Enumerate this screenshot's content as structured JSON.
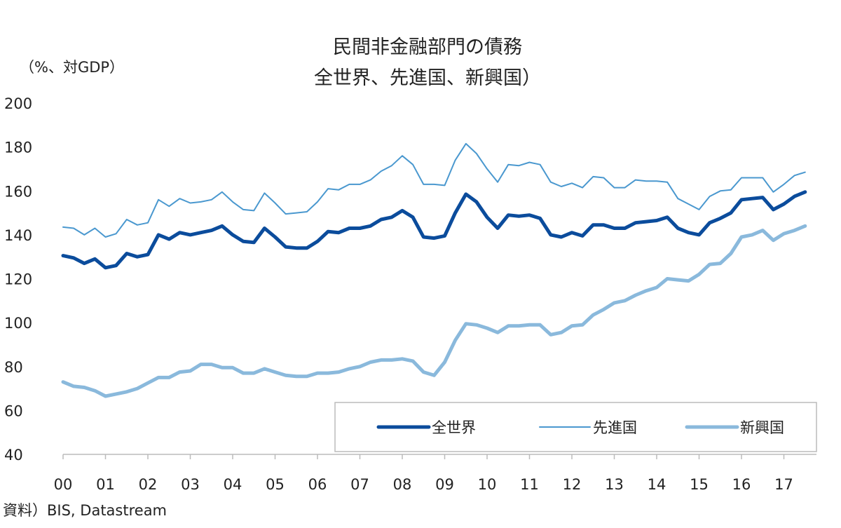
{
  "chart_data": {
    "type": "line",
    "title": "民間非金融部門の債務",
    "subtitle": "全世界、先進国、新興国）",
    "ylabel": "（%、対GDP）",
    "xlabel": "",
    "source": "資料）BIS, Datastream",
    "ylim": [
      40,
      200
    ],
    "yticks": [
      "200",
      "180",
      "160",
      "140",
      "120",
      "100",
      "80",
      "60",
      "40"
    ],
    "xticks": [
      "00",
      "01",
      "02",
      "03",
      "04",
      "05",
      "06",
      "07",
      "08",
      "09",
      "10",
      "11",
      "12",
      "13",
      "14",
      "15",
      "16",
      "17"
    ],
    "x_frequency": "quarterly, from 2000",
    "grid": false,
    "legend_position": "bottom-right",
    "series": [
      {
        "name": "全世界",
        "color": "#0b4c9c",
        "width": "thick",
        "values": [
          130.5,
          129.5,
          127,
          129,
          125,
          126,
          131.5,
          130,
          131,
          140,
          138,
          141,
          140,
          141,
          142,
          144,
          140,
          137,
          136.5,
          143,
          139,
          134.5,
          134,
          134,
          137,
          141.5,
          141,
          143,
          143,
          144,
          147,
          148,
          151,
          148,
          139,
          138.5,
          139.5,
          150,
          158.5,
          155,
          148,
          143,
          149,
          148.5,
          149,
          147.5,
          140,
          139,
          141,
          139.5,
          144.5,
          144.5,
          143,
          143,
          145.5,
          146,
          146.5,
          148,
          143,
          141,
          140,
          145.5,
          147.5,
          150,
          156,
          156.5,
          157,
          151.5,
          154,
          157.5,
          159.5
        ]
      },
      {
        "name": "先進国",
        "color": "#4a98cf",
        "width": "thin",
        "values": [
          143.5,
          143,
          140,
          143,
          139,
          140.5,
          147,
          144.5,
          145.5,
          156,
          153,
          156.5,
          154.5,
          155,
          156,
          159.5,
          155,
          151.5,
          151,
          159,
          154.5,
          149.5,
          150,
          150.5,
          155,
          161,
          160.5,
          163,
          163,
          165,
          169,
          171.5,
          176,
          172,
          163,
          163,
          162.5,
          174,
          181.5,
          177,
          170,
          164,
          172,
          171.5,
          173,
          172,
          164,
          162,
          163.5,
          161.5,
          166.5,
          166,
          161.5,
          161.5,
          165,
          164.5,
          164.5,
          164,
          156.5,
          154,
          151.5,
          157.5,
          160,
          160.5,
          166,
          166,
          166,
          159.5,
          163,
          167,
          168.5
        ]
      },
      {
        "name": "新興国",
        "color": "#8ab9dc",
        "width": "thick",
        "values": [
          73,
          71,
          70.5,
          69,
          66.5,
          67.5,
          68.5,
          70,
          72.5,
          75,
          75,
          77.5,
          78,
          81,
          81,
          79.5,
          79.5,
          77,
          77,
          79,
          77.5,
          76,
          75.5,
          75.5,
          77,
          77,
          77.5,
          79,
          80,
          82,
          83,
          83,
          83.5,
          82.5,
          77.5,
          76,
          82,
          92,
          99.5,
          99,
          97.5,
          95.5,
          98.5,
          98.5,
          99,
          99,
          94.5,
          95.5,
          98.5,
          99,
          103.5,
          106,
          109,
          110,
          112.5,
          114.5,
          116,
          120,
          119.5,
          119,
          122,
          126.5,
          127,
          131.5,
          139,
          140,
          142,
          137.5,
          140.5,
          142,
          144
        ]
      }
    ]
  }
}
